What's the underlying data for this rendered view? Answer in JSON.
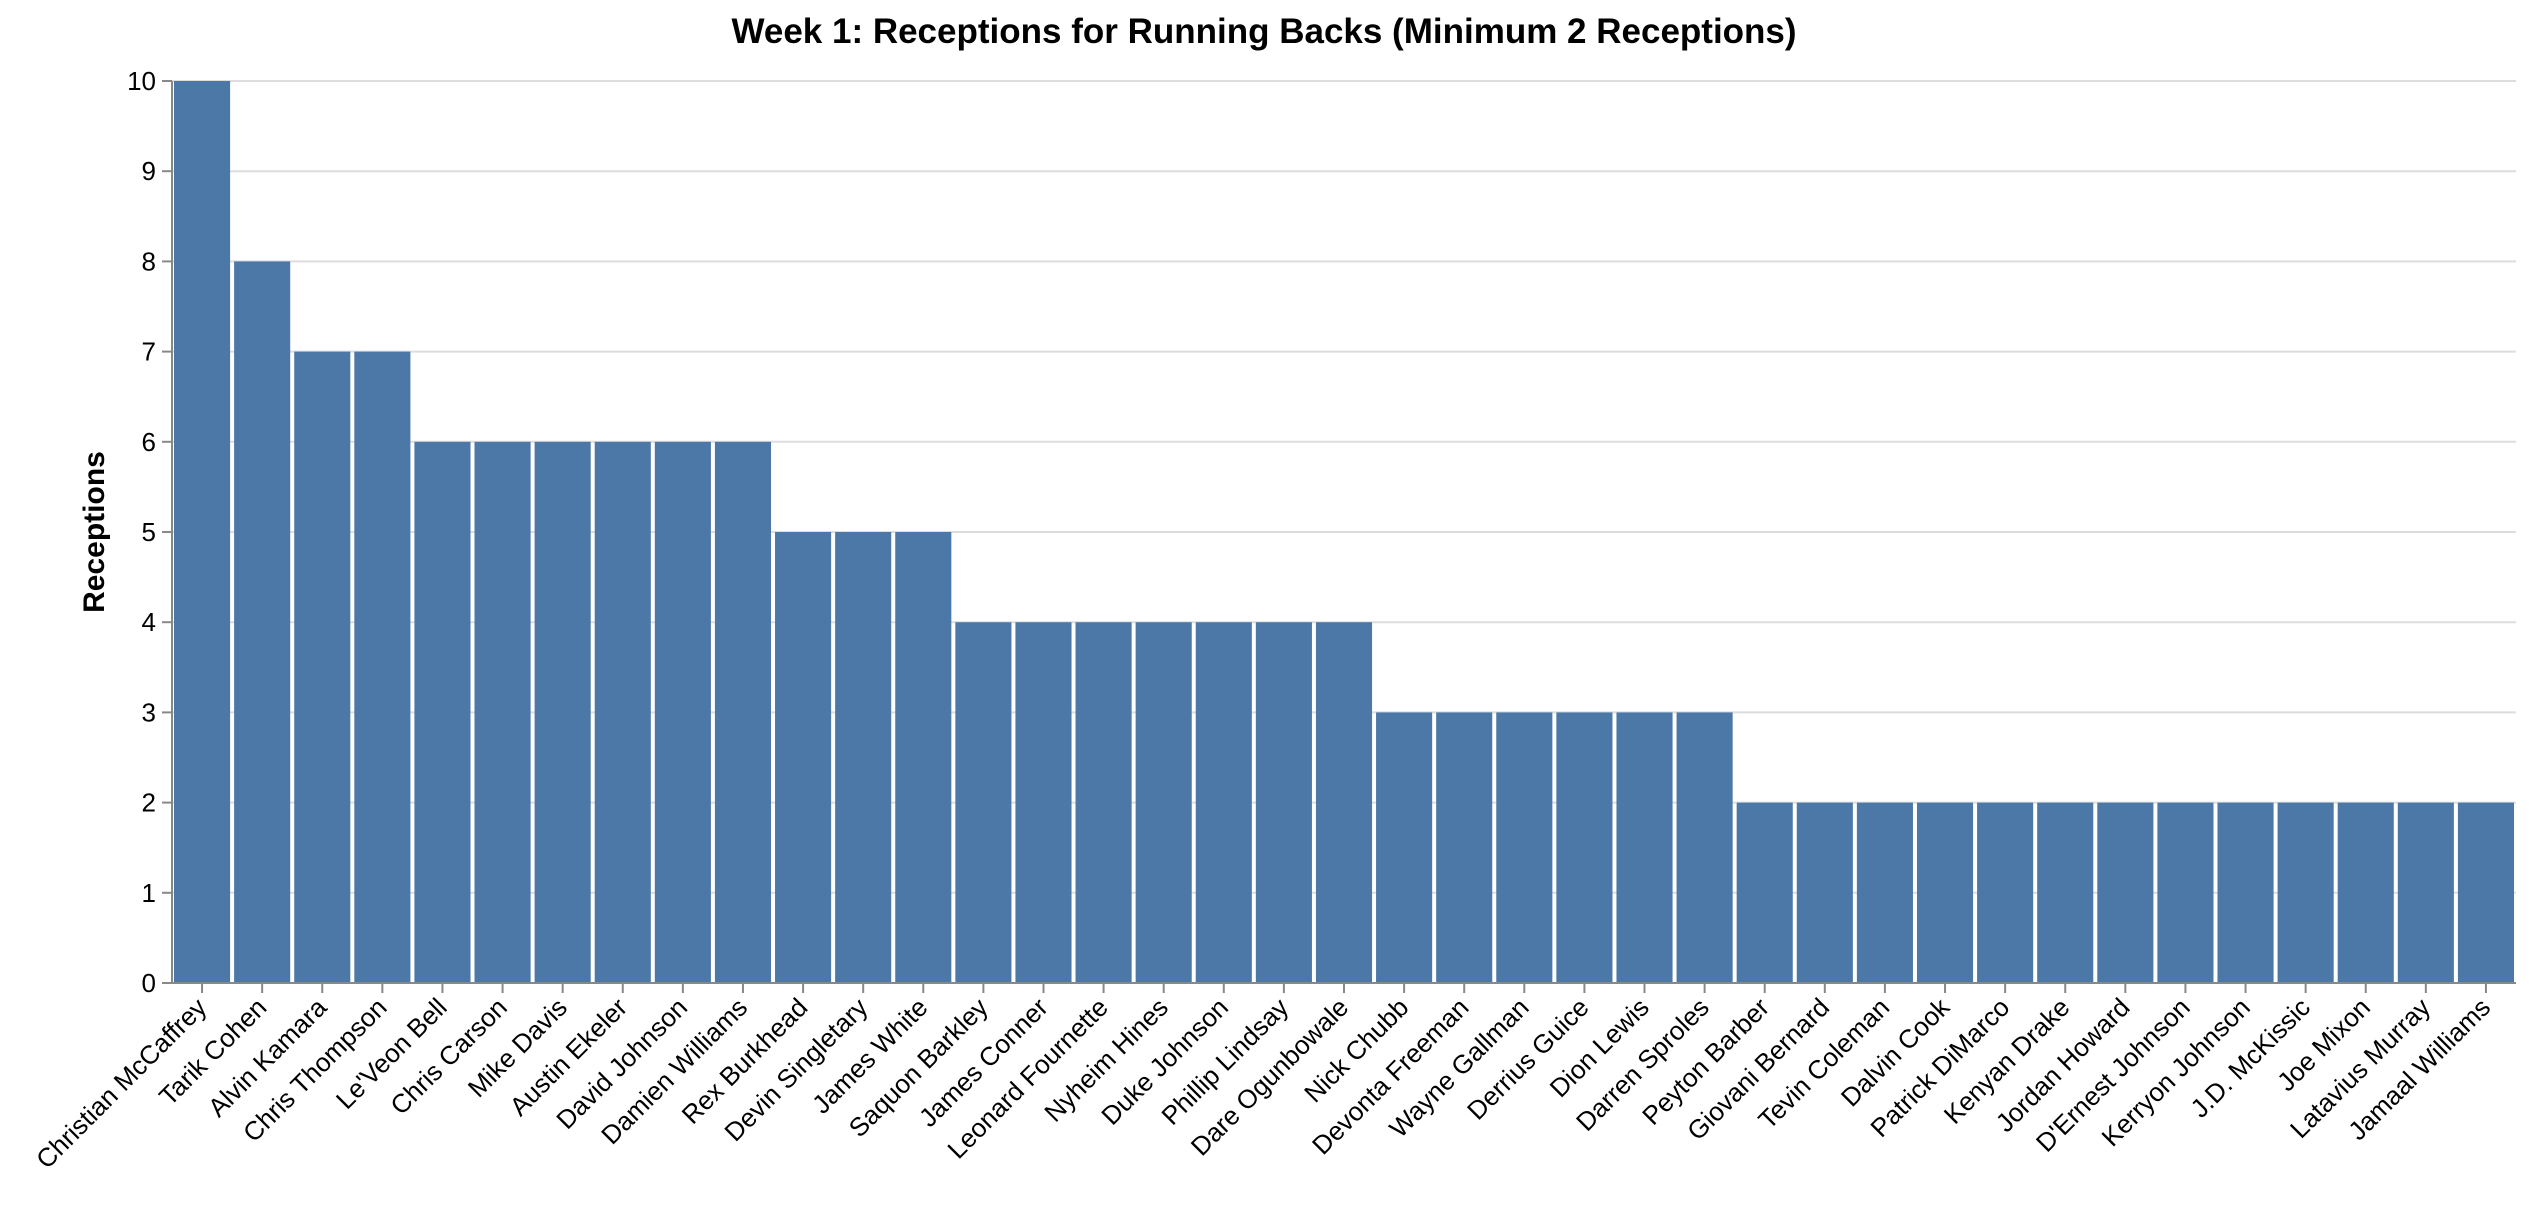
{
  "chart_data": {
    "type": "bar",
    "title": "Week 1: Receptions for Running Backs (Minimum 2 Receptions)",
    "xlabel": "",
    "ylabel": "Receptions",
    "ylim": [
      0,
      10
    ],
    "yticks": [
      0,
      1,
      2,
      3,
      4,
      5,
      6,
      7,
      8,
      9,
      10
    ],
    "grid": true,
    "bar_color": "#4c78a8",
    "categories": [
      "Christian McCaffrey",
      "Tarik Cohen",
      "Alvin Kamara",
      "Chris Thompson",
      "Le'Veon Bell",
      "Chris Carson",
      "Mike Davis",
      "Austin Ekeler",
      "David Johnson",
      "Damien Williams",
      "Rex Burkhead",
      "Devin Singletary",
      "James White",
      "Saquon Barkley",
      "James Conner",
      "Leonard Fournette",
      "Nyheim Hines",
      "Duke Johnson",
      "Phillip Lindsay",
      "Dare Ogunbowale",
      "Nick Chubb",
      "Devonta Freeman",
      "Wayne Gallman",
      "Derrius Guice",
      "Dion Lewis",
      "Darren Sproles",
      "Peyton Barber",
      "Giovani Bernard",
      "Tevin Coleman",
      "Dalvin Cook",
      "Patrick DiMarco",
      "Kenyan Drake",
      "Jordan Howard",
      "D'Ernest Johnson",
      "Kerryon Johnson",
      "J.D. McKissic",
      "Joe Mixon",
      "Latavius Murray",
      "Jamaal Williams"
    ],
    "values": [
      10,
      8,
      7,
      7,
      6,
      6,
      6,
      6,
      6,
      6,
      5,
      5,
      5,
      4,
      4,
      4,
      4,
      4,
      4,
      4,
      3,
      3,
      3,
      3,
      3,
      3,
      2,
      2,
      2,
      2,
      2,
      2,
      2,
      2,
      2,
      2,
      2,
      2,
      2
    ]
  }
}
